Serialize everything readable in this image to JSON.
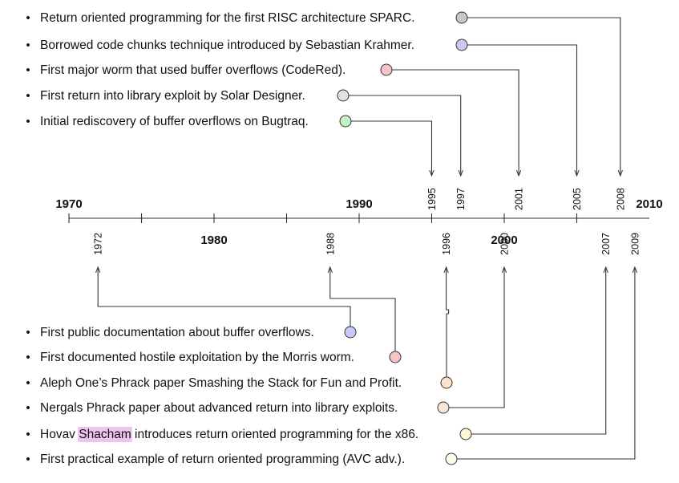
{
  "timeline": {
    "start": 1970,
    "end": 2010,
    "decade_labels": [
      {
        "year": 1970,
        "label": "1970",
        "side": "above"
      },
      {
        "year": 1980,
        "label": "1980",
        "side": "below"
      },
      {
        "year": 1990,
        "label": "1990",
        "side": "above"
      },
      {
        "year": 2000,
        "label": "2000",
        "side": "below"
      },
      {
        "year": 2010,
        "label": "2010",
        "side": "above"
      }
    ],
    "minor_tick_years": [
      1970,
      1975,
      1980,
      1985,
      1990,
      1995,
      2000,
      2005
    ]
  },
  "top_events": [
    {
      "year": "2008",
      "text": "Return oriented programming for the first RISC architecture SPARC.",
      "color": "#c8c8c8"
    },
    {
      "year": "2005",
      "text": "Borrowed code chunks technique introduced by Sebastian Krahmer.",
      "color": "#c9c9f7"
    },
    {
      "year": "2001",
      "text": "First major worm that used buffer overflows (CodeRed).",
      "color": "#f7c3cd"
    },
    {
      "year": "1997",
      "text": "First return into library exploit by Solar Designer.",
      "color": "#e2e2e2"
    },
    {
      "year": "1995",
      "text": "Initial rediscovery of buffer overflows on Bugtraq.",
      "color": "#c5f2c5"
    }
  ],
  "bottom_events": [
    {
      "year": "1972",
      "text": "First public documentation about buffer overflows.",
      "color": "#c9c9f7"
    },
    {
      "year": "1988",
      "text": "First documented hostile exploitation by the Morris worm.",
      "color": "#f7c3c3"
    },
    {
      "year": "1996",
      "text": "Aleph One’s Phrack paper Smashing the Stack for Fun and Profit.",
      "color": "#fde3cc"
    },
    {
      "year": "2000",
      "text": "Nergals Phrack paper about advanced return into library exploits.",
      "color": "#fde8d8"
    },
    {
      "year": "2007",
      "text": "Hovav Shacham introduces return oriented programming for the x86.",
      "color": "#fdf7d6",
      "highlight": {
        "word": "Shacham",
        "color": "#efc3ef"
      }
    },
    {
      "year": "2009",
      "text": "First practical example of return oriented programming (AVC adv.).",
      "color": "#fefbe7"
    }
  ],
  "bullet_glyph": "•",
  "colors": {
    "line": "#333333",
    "text": "#111111"
  }
}
